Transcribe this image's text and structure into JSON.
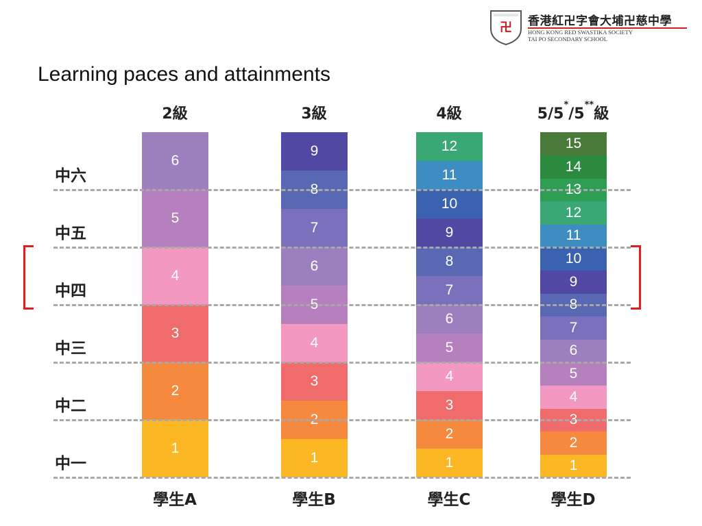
{
  "header": {
    "school_name_zh": "香港紅卍字會大埔卍慈中學",
    "school_name_en_line1": "HONG KONG RED SWASTIKA SOCIETY",
    "school_name_en_line2": "TAI PO SECONDARY SCHOOL",
    "crest_glyph": "卍"
  },
  "title": "Learning paces and attainments",
  "row_labels": [
    "中六",
    "中五",
    "中四",
    "中三",
    "中二",
    "中一"
  ],
  "highlight_rows": [
    "中四"
  ],
  "columns": [
    {
      "head": "2級",
      "student": "學生A",
      "levels": [
        {
          "n": "1",
          "color": "#fbb824"
        },
        {
          "n": "2",
          "color": "#f58a3f"
        },
        {
          "n": "3",
          "color": "#f06b6b"
        },
        {
          "n": "4",
          "color": "#f398c0"
        },
        {
          "n": "5",
          "color": "#b67fbd"
        },
        {
          "n": "6",
          "color": "#9b7fbe"
        }
      ]
    },
    {
      "head": "3級",
      "student": "學生B",
      "levels": [
        {
          "n": "1",
          "color": "#fbb824"
        },
        {
          "n": "2",
          "color": "#f58a3f"
        },
        {
          "n": "3",
          "color": "#f06b6b"
        },
        {
          "n": "4",
          "color": "#f398c0"
        },
        {
          "n": "5",
          "color": "#b67fbd"
        },
        {
          "n": "6",
          "color": "#9b7fbe"
        },
        {
          "n": "7",
          "color": "#7a70bb"
        },
        {
          "n": "8",
          "color": "#5868b3"
        },
        {
          "n": "9",
          "color": "#5048a2"
        }
      ]
    },
    {
      "head": "4級",
      "student": "學生C",
      "levels": [
        {
          "n": "1",
          "color": "#fbb824"
        },
        {
          "n": "2",
          "color": "#f58a3f"
        },
        {
          "n": "3",
          "color": "#f06b6b"
        },
        {
          "n": "4",
          "color": "#f398c0"
        },
        {
          "n": "5",
          "color": "#b67fbd"
        },
        {
          "n": "6",
          "color": "#9b7fbe"
        },
        {
          "n": "7",
          "color": "#7a70bb"
        },
        {
          "n": "8",
          "color": "#5868b3"
        },
        {
          "n": "9",
          "color": "#5048a2"
        },
        {
          "n": "10",
          "color": "#3a62ae"
        },
        {
          "n": "11",
          "color": "#3d8dc3"
        },
        {
          "n": "12",
          "color": "#3aa875"
        }
      ]
    },
    {
      "head": "5/5*/5**級",
      "head_parts": {
        "a": "5/5",
        "b": "*",
        "c": "/5",
        "d": "**",
        "e": "級"
      },
      "student": "學生D",
      "levels": [
        {
          "n": "1",
          "color": "#fbb824"
        },
        {
          "n": "2",
          "color": "#f58a3f"
        },
        {
          "n": "3",
          "color": "#f06b6b"
        },
        {
          "n": "4",
          "color": "#f398c0"
        },
        {
          "n": "5",
          "color": "#b67fbd"
        },
        {
          "n": "6",
          "color": "#9b7fbe"
        },
        {
          "n": "7",
          "color": "#7a70bb"
        },
        {
          "n": "8",
          "color": "#5868b3"
        },
        {
          "n": "9",
          "color": "#5048a2"
        },
        {
          "n": "10",
          "color": "#3a62ae"
        },
        {
          "n": "11",
          "color": "#3d8dc3"
        },
        {
          "n": "12",
          "color": "#3aa875"
        },
        {
          "n": "13",
          "color": "#2e9e55"
        },
        {
          "n": "14",
          "color": "#2b8a3e"
        },
        {
          "n": "15",
          "color": "#4a7a3a"
        }
      ]
    }
  ],
  "colors": {
    "dash": "#a8a8a8",
    "bracket": "#e02020",
    "text": "#222222"
  }
}
